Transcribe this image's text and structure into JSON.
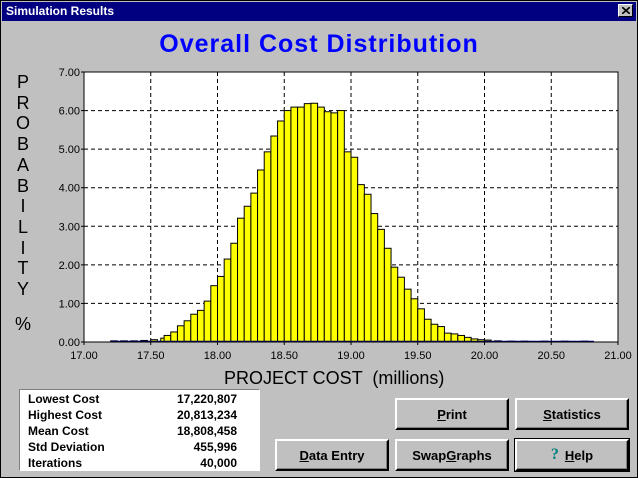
{
  "window": {
    "title": "Simulation Results"
  },
  "chart_data": {
    "type": "bar",
    "title": "Overall  Cost  Distribution",
    "ylabel_letters": [
      "P",
      "R",
      "O",
      "B",
      "A",
      "B",
      "I",
      "L",
      "I",
      "T",
      "Y"
    ],
    "ylabel_unit": "%",
    "xlabel": "PROJECT COST  (millions)",
    "xlim": [
      17.0,
      21.0
    ],
    "ylim": [
      0.0,
      7.0
    ],
    "xticks": [
      "17.00",
      "17.50",
      "18.00",
      "18.50",
      "19.00",
      "19.50",
      "20.00",
      "20.50",
      "21.00"
    ],
    "yticks": [
      "0.00",
      "1.00",
      "2.00",
      "3.00",
      "4.00",
      "5.00",
      "6.00",
      "7.00"
    ],
    "grid": true,
    "bar_color": "#ffff00",
    "bins": [
      {
        "x": 17.225,
        "y": 0.03
      },
      {
        "x": 17.3,
        "y": 0.03
      },
      {
        "x": 17.375,
        "y": 0.03
      },
      {
        "x": 17.45,
        "y": 0.04
      },
      {
        "x": 17.525,
        "y": 0.06
      },
      {
        "x": 17.6,
        "y": 0.1
      },
      {
        "x": 17.625,
        "y": 0.17
      },
      {
        "x": 17.675,
        "y": 0.26
      },
      {
        "x": 17.725,
        "y": 0.42
      },
      {
        "x": 17.775,
        "y": 0.55
      },
      {
        "x": 17.825,
        "y": 0.72
      },
      {
        "x": 17.875,
        "y": 0.82
      },
      {
        "x": 17.925,
        "y": 1.06
      },
      {
        "x": 17.975,
        "y": 1.46
      },
      {
        "x": 18.025,
        "y": 1.7
      },
      {
        "x": 18.075,
        "y": 2.15
      },
      {
        "x": 18.125,
        "y": 2.56
      },
      {
        "x": 18.175,
        "y": 3.21
      },
      {
        "x": 18.225,
        "y": 3.52
      },
      {
        "x": 18.275,
        "y": 3.86
      },
      {
        "x": 18.325,
        "y": 4.46
      },
      {
        "x": 18.375,
        "y": 4.93
      },
      {
        "x": 18.425,
        "y": 5.34
      },
      {
        "x": 18.475,
        "y": 5.73
      },
      {
        "x": 18.525,
        "y": 6.0
      },
      {
        "x": 18.575,
        "y": 6.09
      },
      {
        "x": 18.625,
        "y": 6.09
      },
      {
        "x": 18.675,
        "y": 6.18
      },
      {
        "x": 18.725,
        "y": 6.19
      },
      {
        "x": 18.775,
        "y": 6.09
      },
      {
        "x": 18.825,
        "y": 5.97
      },
      {
        "x": 18.875,
        "y": 5.94
      },
      {
        "x": 18.925,
        "y": 6.0
      },
      {
        "x": 18.975,
        "y": 4.93
      },
      {
        "x": 19.025,
        "y": 4.79
      },
      {
        "x": 19.075,
        "y": 4.08
      },
      {
        "x": 19.125,
        "y": 3.83
      },
      {
        "x": 19.175,
        "y": 3.33
      },
      {
        "x": 19.225,
        "y": 2.92
      },
      {
        "x": 19.275,
        "y": 2.43
      },
      {
        "x": 19.325,
        "y": 1.94
      },
      {
        "x": 19.375,
        "y": 1.68
      },
      {
        "x": 19.425,
        "y": 1.37
      },
      {
        "x": 19.475,
        "y": 1.12
      },
      {
        "x": 19.525,
        "y": 0.86
      },
      {
        "x": 19.575,
        "y": 0.59
      },
      {
        "x": 19.625,
        "y": 0.46
      },
      {
        "x": 19.675,
        "y": 0.4
      },
      {
        "x": 19.725,
        "y": 0.23
      },
      {
        "x": 19.775,
        "y": 0.21
      },
      {
        "x": 19.825,
        "y": 0.17
      },
      {
        "x": 19.875,
        "y": 0.12
      },
      {
        "x": 19.925,
        "y": 0.08
      },
      {
        "x": 19.975,
        "y": 0.06
      },
      {
        "x": 20.025,
        "y": 0.05
      },
      {
        "x": 20.1,
        "y": 0.03
      },
      {
        "x": 20.2,
        "y": 0.02
      },
      {
        "x": 20.3,
        "y": 0.02
      },
      {
        "x": 20.45,
        "y": 0.02
      },
      {
        "x": 20.6,
        "y": 0.02
      },
      {
        "x": 20.75,
        "y": 0.02
      }
    ]
  },
  "stats": [
    {
      "label": "Lowest Cost",
      "value": "17,220,807"
    },
    {
      "label": "Highest Cost",
      "value": "20,813,234"
    },
    {
      "label": "Mean Cost",
      "value": "18,808,458"
    },
    {
      "label": "Std Deviation",
      "value": "455,996"
    },
    {
      "label": "Iterations",
      "value": "40,000"
    }
  ],
  "buttons": {
    "print": {
      "pre": "",
      "ul": "P",
      "post": "rint"
    },
    "statistics": {
      "pre": "",
      "ul": "S",
      "post": "tatistics"
    },
    "data_entry": {
      "pre": "",
      "ul": "D",
      "post": "ata Entry"
    },
    "swap_graphs": {
      "pre": "Swap ",
      "ul": "G",
      "post": "raphs"
    },
    "help": {
      "pre": "",
      "ul": "H",
      "post": "elp",
      "icon": "?"
    }
  }
}
